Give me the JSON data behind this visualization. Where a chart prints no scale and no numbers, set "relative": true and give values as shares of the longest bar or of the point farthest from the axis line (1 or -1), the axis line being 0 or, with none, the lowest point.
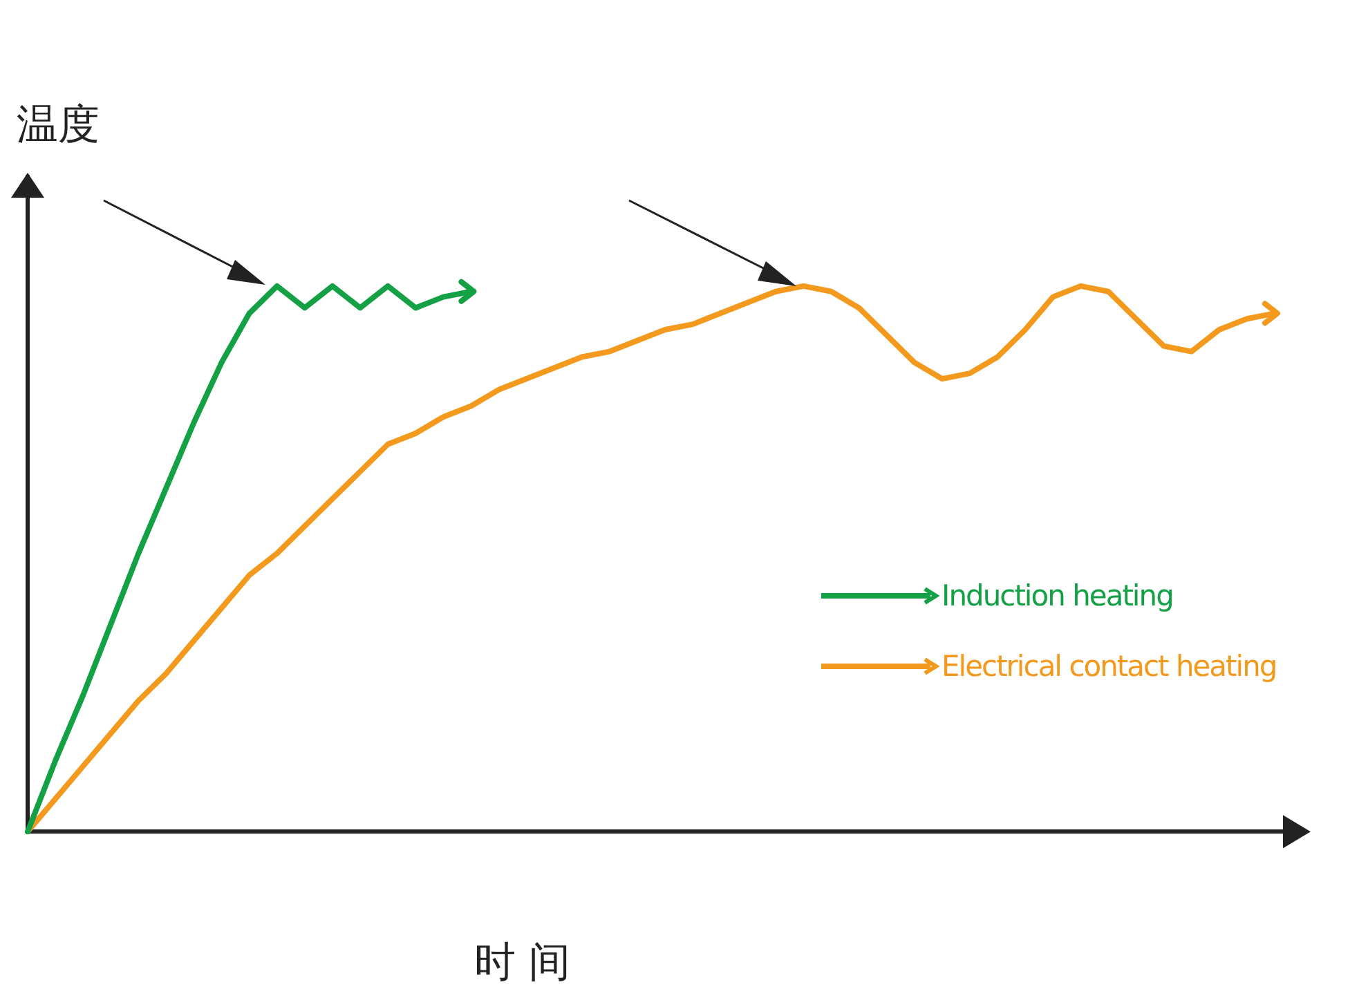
{
  "chart_data": {
    "type": "line",
    "relative": true,
    "xlabel": "时 间",
    "ylabel": "温度",
    "legend": "bottom right",
    "grid": false,
    "line_style": "solid",
    "categories": [
      null,
      null,
      null,
      null,
      null,
      null,
      null,
      null,
      null,
      null,
      null,
      null,
      null,
      null,
      null,
      null,
      null,
      null,
      null,
      null,
      null,
      null,
      null,
      null,
      null,
      null,
      null,
      null,
      null,
      null,
      null,
      null,
      null,
      null,
      null,
      null,
      null,
      null,
      null,
      null,
      null,
      null,
      null,
      null,
      null,
      null,
      null
    ],
    "series": [
      {
        "name": "Induction heating",
        "color": "#14a045",
        "values": [
          0,
          0.13,
          0.25,
          0.38,
          0.51,
          0.63,
          0.75,
          0.86,
          0.95,
          1,
          0.96,
          1,
          0.96,
          1,
          0.96,
          0.98,
          0.99,
          null,
          null,
          null,
          null,
          null,
          null,
          null,
          null,
          null,
          null,
          null,
          null,
          null,
          null,
          null,
          null,
          null,
          null,
          null,
          null,
          null,
          null,
          null,
          null,
          null,
          null,
          null,
          null,
          null,
          null
        ]
      },
      {
        "name": "Electrical contact heating",
        "color": "#f39a1e",
        "values": [
          0,
          0.06,
          0.12,
          0.18,
          0.24,
          0.29,
          0.35,
          0.41,
          0.47,
          0.51,
          0.56,
          0.61,
          0.66,
          0.71,
          0.73,
          0.76,
          0.78,
          0.81,
          0.83,
          0.85,
          0.87,
          0.88,
          0.9,
          0.92,
          0.93,
          0.95,
          0.97,
          0.99,
          1,
          0.99,
          0.96,
          0.91,
          0.86,
          0.83,
          0.84,
          0.87,
          0.92,
          0.98,
          1,
          0.99,
          0.94,
          0.89,
          0.88,
          0.92,
          0.94,
          0.95,
          null
        ]
      }
    ]
  }
}
